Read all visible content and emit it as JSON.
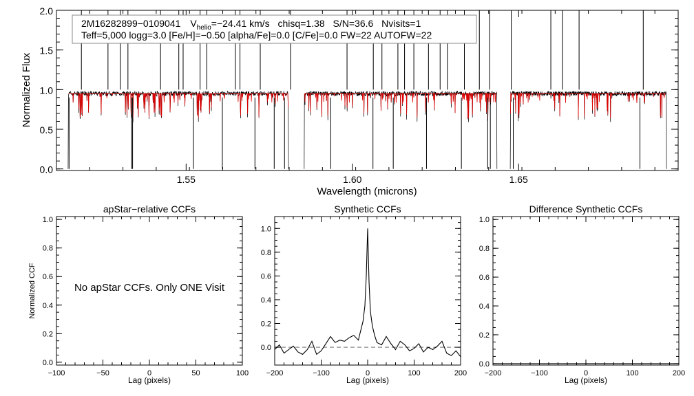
{
  "info": {
    "star_id": "2M16282899-0109041",
    "vhelio_prefix": "V",
    "vhelio_sub": "helio",
    "vhelio_value": "=-24.41 km/s",
    "chisq": "chisq=1.38",
    "snr": "S/N=36.6",
    "nvisits": "Nvisits=1",
    "params_line": "Teff=5,000 logg=3.0 [Fe/H]=-0.50 [alpha/Fe]=0.0 [C/Fe]=0.0 FW=22 AUTOFW=22"
  },
  "note": "No apStar CCFs.  Only ONE Visit",
  "colors": {
    "observed": "#000000",
    "model": "#dd0000",
    "dashed": "#555555"
  },
  "chart_data": [
    {
      "type": "line",
      "title": "",
      "xlabel": "Wavelength (microns)",
      "ylabel": "Normalized Flux",
      "xlim": [
        1.511,
        1.698
      ],
      "ylim": [
        -0.02,
        2.0
      ],
      "xticks": [
        "1.55",
        "1.60",
        "1.65"
      ],
      "yticks": [
        "0.0",
        "0.5",
        "1.0",
        "1.5",
        "2.0"
      ],
      "chips": [
        [
          1.5145,
          1.5808
        ],
        [
          1.5855,
          1.6435
        ],
        [
          1.6475,
          1.6945
        ]
      ],
      "series": [
        {
          "color": "observed",
          "baseline": 0.95,
          "noise": 0.03
        },
        {
          "color": "model",
          "baseline": 0.95,
          "noise": 0.0
        }
      ],
      "deep_lines_to_zero": [
        1.5148,
        1.5336,
        1.5339,
        1.5522,
        1.5609,
        1.5707,
        1.5765,
        1.5796,
        1.5935,
        1.6062,
        1.6123,
        1.6223,
        1.6328,
        1.6407,
        1.6415,
        1.6484,
        1.6865
      ],
      "spikes_to_top": [
        1.5185,
        1.5265,
        1.5302,
        1.5325,
        1.5423,
        1.5478,
        1.5491,
        1.5542,
        1.5562,
        1.5648,
        1.5662,
        1.5723,
        1.5814,
        1.5984,
        1.6063,
        1.6089,
        1.6137,
        1.6157,
        1.6185,
        1.6229,
        1.6264,
        1.6286,
        1.6337,
        1.6382,
        1.6413,
        1.6478,
        1.6597,
        1.6632,
        1.6682,
        1.6875
      ]
    },
    {
      "type": "line",
      "title": "apStar-relative CCFs",
      "xlabel": "Lag (pixels)",
      "ylabel": "Normalized CCF",
      "xlim": [
        -100,
        100
      ],
      "ylim": [
        -0.02,
        1.02
      ],
      "xticks": [
        "-100",
        "-50",
        "0",
        "50",
        "100"
      ],
      "yticks": [
        "0.0",
        "0.2",
        "0.4",
        "0.6",
        "0.8",
        "1.0"
      ],
      "series": []
    },
    {
      "type": "line",
      "title": "Synthetic CCFs",
      "xlabel": "Lag (pixels)",
      "ylabel": "",
      "xlim": [
        -200,
        200
      ],
      "ylim": [
        -0.15,
        1.1
      ],
      "xticks": [
        "-200",
        "-100",
        "0",
        "100",
        "200"
      ],
      "yticks": [
        "0.0",
        "0.2",
        "0.4",
        "0.6",
        "0.8",
        "1.0"
      ],
      "zero_line_dashed": true,
      "series": [
        {
          "color": "observed",
          "x": [
            -200,
            -190,
            -180,
            -170,
            -160,
            -150,
            -140,
            -130,
            -120,
            -110,
            -100,
            -90,
            -80,
            -70,
            -60,
            -50,
            -40,
            -30,
            -20,
            -15,
            -10,
            -6,
            -3,
            0,
            3,
            6,
            10,
            15,
            20,
            30,
            40,
            50,
            60,
            70,
            80,
            90,
            100,
            110,
            120,
            130,
            140,
            150,
            160,
            170,
            180,
            190,
            200
          ],
          "y": [
            -0.02,
            0.02,
            -0.05,
            -0.02,
            0.01,
            -0.04,
            -0.06,
            -0.02,
            0.05,
            -0.06,
            -0.03,
            0.03,
            0.09,
            0.04,
            0.06,
            0.05,
            0.08,
            0.1,
            0.06,
            0.14,
            0.22,
            0.35,
            0.6,
            1.0,
            0.55,
            0.3,
            0.18,
            0.1,
            0.04,
            0.02,
            0.09,
            0.03,
            -0.02,
            0.05,
            0.02,
            -0.03,
            -0.01,
            0.03,
            -0.04,
            0.0,
            -0.02,
            0.01,
            0.05,
            -0.05,
            -0.07,
            -0.03,
            -0.08
          ]
        }
      ]
    },
    {
      "type": "line",
      "title": "Difference Synthetic CCFs",
      "xlabel": "Lag (pixels)",
      "ylabel": "",
      "xlim": [
        -200,
        200
      ],
      "ylim": [
        -0.01,
        1.02
      ],
      "xticks": [
        "-200",
        "-100",
        "0",
        "100",
        "200"
      ],
      "yticks": [
        "0.0",
        "0.2",
        "0.4",
        "0.6",
        "0.8",
        "1.0"
      ],
      "series": [
        {
          "color": "observed",
          "x": [
            -200,
            200
          ],
          "y": [
            0.0,
            0.0
          ]
        }
      ]
    }
  ]
}
